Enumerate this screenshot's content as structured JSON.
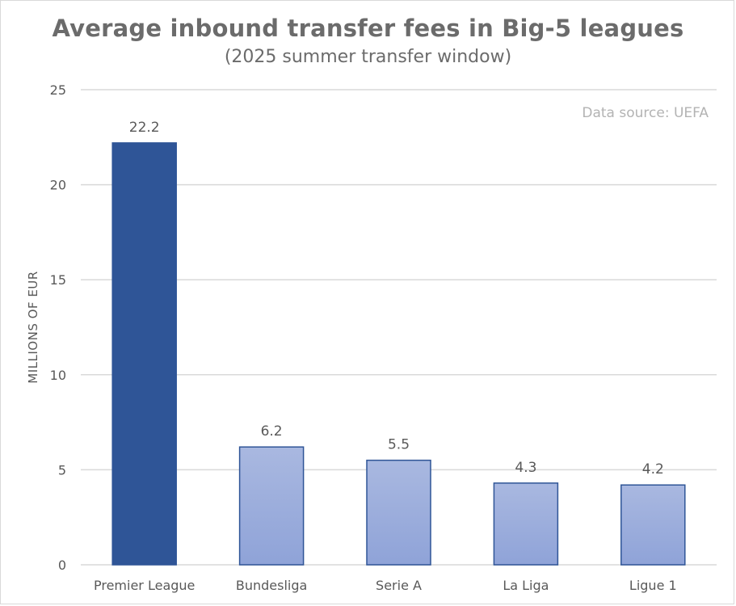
{
  "chart_data": {
    "type": "bar",
    "title": "Average inbound transfer fees in Big-5 leagues",
    "subtitle": "(2025 summer transfer window)",
    "xlabel": "",
    "ylabel": "MILLIONS OF EUR",
    "categories": [
      "Premier League",
      "Bundesliga",
      "Serie A",
      "La Liga",
      "Ligue 1"
    ],
    "values": [
      22.2,
      6.2,
      5.5,
      4.3,
      4.2
    ],
    "data_labels": [
      "22.2",
      "6.2",
      "5.5",
      "4.3",
      "4.2"
    ],
    "ylim": [
      0,
      25
    ],
    "yticks": [
      0,
      5,
      10,
      15,
      20,
      25
    ],
    "grid": true,
    "highlight_index": 0,
    "annotation": "Data source: UEFA",
    "colors": {
      "highlight": "#2f5597",
      "bar_top": "#a9b8e0",
      "bar_bottom": "#8fa3d8",
      "bar_border": "#2f5597",
      "grid": "#d9d9d9"
    }
  }
}
